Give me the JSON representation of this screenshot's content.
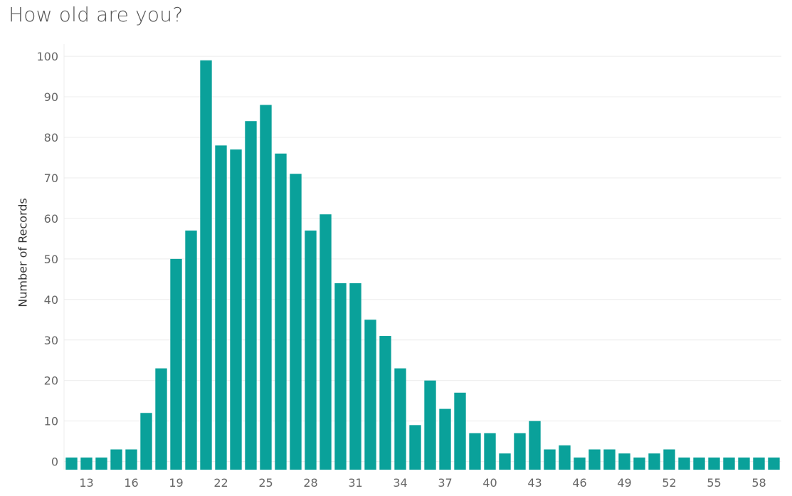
{
  "chart_data": {
    "type": "bar",
    "title": "How old are you?",
    "xlabel": "",
    "ylabel": "Number of Records",
    "categories": [
      12,
      13,
      14,
      15,
      16,
      17,
      18,
      19,
      20,
      21,
      22,
      23,
      24,
      25,
      26,
      27,
      28,
      29,
      30,
      31,
      32,
      33,
      34,
      35,
      36,
      37,
      38,
      39,
      40,
      41,
      42,
      43,
      44,
      45,
      46,
      47,
      48,
      49,
      50,
      51,
      52,
      53,
      54,
      55,
      56,
      57,
      58,
      59
    ],
    "values": [
      1,
      1,
      1,
      3,
      3,
      12,
      23,
      50,
      57,
      99,
      78,
      77,
      84,
      88,
      76,
      71,
      57,
      61,
      44,
      44,
      35,
      31,
      23,
      9,
      20,
      13,
      17,
      7,
      7,
      2,
      7,
      10,
      3,
      4,
      1,
      3,
      3,
      2,
      1,
      2,
      3,
      1,
      1,
      1,
      1,
      1,
      1,
      1
    ],
    "x_tick_labels": [
      "13",
      "16",
      "19",
      "22",
      "25",
      "28",
      "31",
      "34",
      "37",
      "40",
      "43",
      "46",
      "49",
      "52",
      "55",
      "58"
    ],
    "y_ticks": [
      0,
      10,
      20,
      30,
      40,
      50,
      60,
      70,
      80,
      90,
      100
    ],
    "ylim": [
      -2,
      103
    ],
    "grid": true,
    "colors": {
      "bar": "#0aa19a",
      "grid": "#ececec",
      "text": "#666666"
    }
  }
}
